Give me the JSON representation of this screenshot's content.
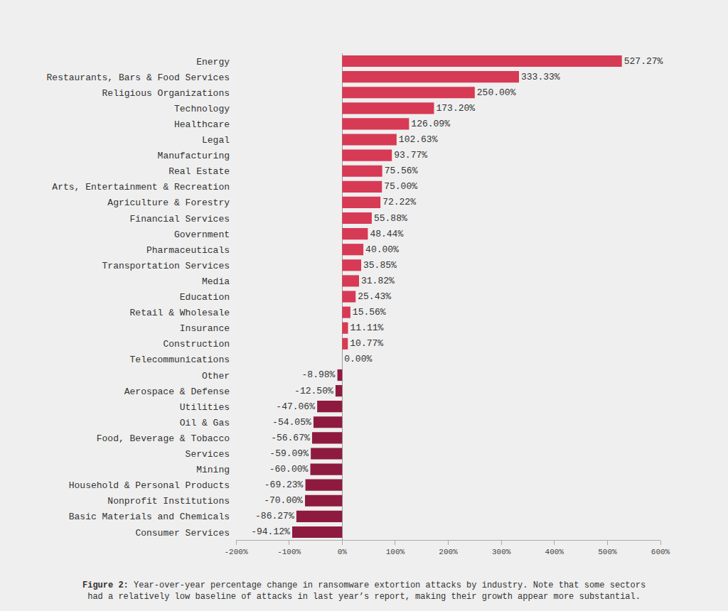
{
  "chart_data": {
    "type": "bar",
    "orientation": "horizontal",
    "data_labels": true,
    "grid": false,
    "categories": [
      "Energy",
      "Restaurants, Bars & Food Services",
      "Religious Organizations",
      "Technology",
      "Healthcare",
      "Legal",
      "Manufacturing",
      "Real Estate",
      "Arts, Entertainment & Recreation",
      "Agriculture & Forestry",
      "Financial Services",
      "Government",
      "Pharmaceuticals",
      "Transportation Services",
      "Media",
      "Education",
      "Retail & Wholesale",
      "Insurance",
      "Construction",
      "Telecommunications",
      "Other",
      "Aerospace & Defense",
      "Utilities",
      "Oil & Gas",
      "Food, Beverage & Tobacco",
      "Services",
      "Mining",
      "Household & Personal Products",
      "Nonprofit Institutions",
      "Basic Materials and Chemicals",
      "Consumer Services"
    ],
    "values": [
      527.27,
      333.33,
      250.0,
      173.2,
      126.09,
      102.63,
      93.77,
      75.56,
      75.0,
      72.22,
      55.88,
      48.44,
      40.0,
      35.85,
      31.82,
      25.43,
      15.56,
      11.11,
      10.77,
      0.0,
      -8.98,
      -12.5,
      -47.06,
      -54.05,
      -56.67,
      -59.09,
      -60.0,
      -69.23,
      -70.0,
      -86.27,
      -94.12
    ],
    "value_labels": [
      "527.27%",
      "333.33%",
      "250.00%",
      "173.20%",
      "126.09%",
      "102.63%",
      "93.77%",
      "75.56%",
      "75.00%",
      "72.22%",
      "55.88%",
      "48.44%",
      "40.00%",
      "35.85%",
      "31.82%",
      "25.43%",
      "15.56%",
      "11.11%",
      "10.77%",
      "0.00%",
      "-8.98%",
      "-12.50%",
      "-47.06%",
      "-54.05%",
      "-56.67%",
      "-59.09%",
      "-60.00%",
      "-69.23%",
      "-70.00%",
      "-86.27%",
      "-94.12%"
    ],
    "colors": [
      "#d63a55",
      "#d63a55",
      "#d63a55",
      "#d63a55",
      "#d63a55",
      "#d63a55",
      "#d63a55",
      "#d63a55",
      "#d63a55",
      "#d63a55",
      "#d63a55",
      "#d63a55",
      "#d63a55",
      "#d63a55",
      "#d63a55",
      "#d63a55",
      "#d63a55",
      "#d63a55",
      "#d63a55",
      "#d63a55",
      "#8e1b3f",
      "#8e1b3f",
      "#8e1b3f",
      "#8e1b3f",
      "#8e1b3f",
      "#8e1b3f",
      "#8e1b3f",
      "#8e1b3f",
      "#8e1b3f",
      "#8e1b3f",
      "#8e1b3f"
    ],
    "xlim": [
      -200,
      600
    ],
    "xticks": [
      {
        "value": -200,
        "label": "-200%"
      },
      {
        "value": -100,
        "label": "-100%"
      },
      {
        "value": 0,
        "label": "0%"
      },
      {
        "value": 100,
        "label": "100%"
      },
      {
        "value": 200,
        "label": "200%"
      },
      {
        "value": 300,
        "label": "300%"
      },
      {
        "value": 400,
        "label": "400%"
      },
      {
        "value": 500,
        "label": "500%"
      },
      {
        "value": 600,
        "label": "600%"
      }
    ],
    "caption": {
      "label": "Figure 2:",
      "lines": [
        "Year-over-year percentage change in ransomware extortion attacks by industry. Note that some sectors",
        "had a relatively low baseline of attacks in last year’s report, making their growth appear more substantial."
      ]
    }
  }
}
